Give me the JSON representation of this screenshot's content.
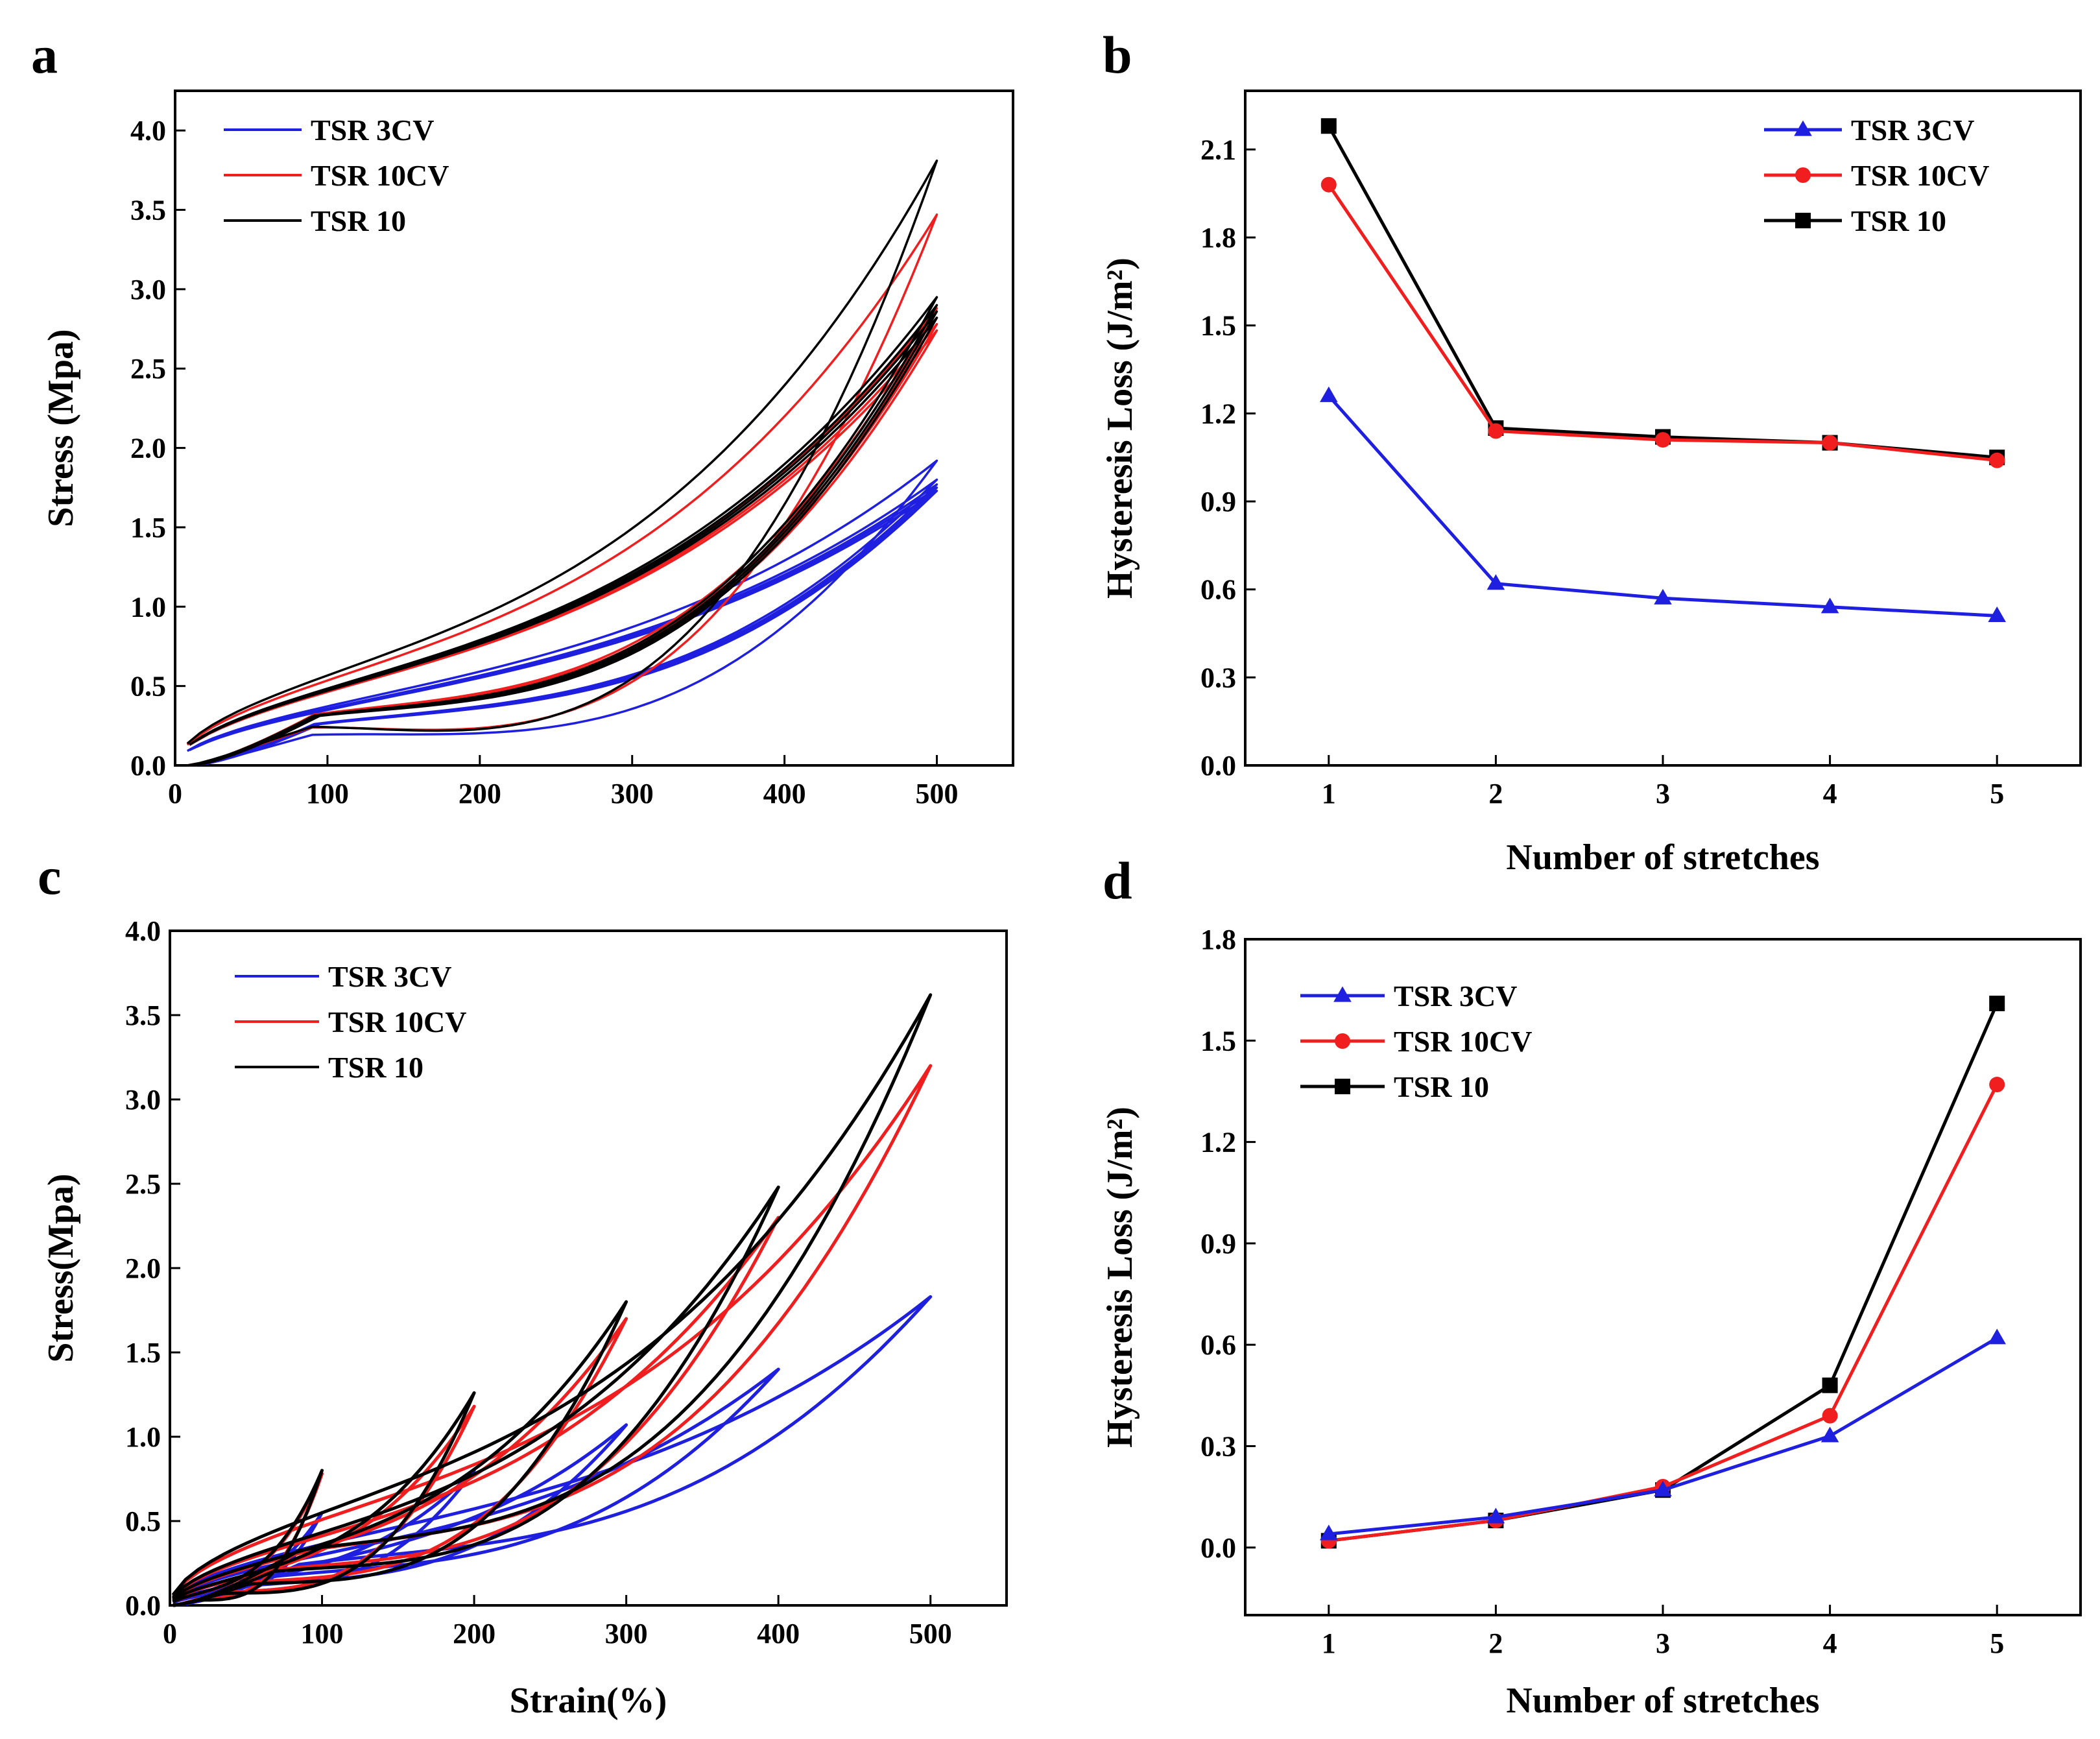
{
  "chart_data": [
    {
      "panel": "a",
      "type": "line",
      "title": "",
      "xlabel": "",
      "ylabel": "Stress (Mpa)",
      "xlim": [
        0,
        550
      ],
      "ylim": [
        0,
        4.25
      ],
      "xticks": [
        0,
        100,
        200,
        300,
        400,
        500
      ],
      "xtick_labels": [
        "0",
        "100",
        "200",
        "300",
        "400",
        "500"
      ],
      "yticks": [
        0,
        0.5,
        1.0,
        1.5,
        2.0,
        2.5,
        3.0,
        3.5,
        4.0
      ],
      "ytick_labels": [
        "0.0",
        "0.5",
        "1.0",
        "1.5",
        "2.0",
        "2.5",
        "3.0",
        "3.5",
        "4.0"
      ],
      "legend_position": "top-left",
      "legend_marker": "line",
      "loop_mode": "fixed",
      "series": [
        {
          "name": "TSR 3CV",
          "color": "#1f1fe0",
          "peaks": [
            1.92,
            1.8,
            1.77,
            1.75,
            1.73
          ],
          "unload_drop": 0.18
        },
        {
          "name": "TSR 10CV",
          "color": "#f01e1e",
          "peaks": [
            3.47,
            2.88,
            2.82,
            2.78,
            2.74
          ],
          "unload_drop": 0.3
        },
        {
          "name": "TSR 10",
          "color": "#000000",
          "peaks": [
            3.81,
            2.95,
            2.9,
            2.86,
            2.82
          ],
          "unload_drop": 0.33
        }
      ]
    },
    {
      "panel": "b",
      "type": "line",
      "title": "",
      "xlabel": "Number of stretches",
      "ylabel": "Hysteresis Loss (J/m²)",
      "xlim": [
        0.5,
        5.5
      ],
      "ylim": [
        0,
        2.3
      ],
      "xticks": [
        1,
        2,
        3,
        4,
        5
      ],
      "xtick_labels": [
        "1",
        "2",
        "3",
        "4",
        "5"
      ],
      "yticks": [
        0,
        0.3,
        0.6,
        0.9,
        1.2,
        1.5,
        1.8,
        2.1
      ],
      "ytick_labels": [
        "0.0",
        "0.3",
        "0.6",
        "0.9",
        "1.2",
        "1.5",
        "1.8",
        "2.1"
      ],
      "legend_position": "top-right",
      "legend_marker": "marker",
      "x": [
        1,
        2,
        3,
        4,
        5
      ],
      "series": [
        {
          "name": "TSR 3CV",
          "color": "#1f1fe0",
          "marker": "triangle",
          "values": [
            1.26,
            0.62,
            0.57,
            0.54,
            0.51
          ]
        },
        {
          "name": "TSR 10CV",
          "color": "#f01e1e",
          "marker": "circle",
          "values": [
            1.98,
            1.14,
            1.11,
            1.1,
            1.04
          ]
        },
        {
          "name": "TSR 10",
          "color": "#000000",
          "marker": "square",
          "values": [
            2.18,
            1.15,
            1.12,
            1.1,
            1.05
          ]
        }
      ]
    },
    {
      "panel": "c",
      "type": "line",
      "title": "",
      "xlabel": "Strain(%)",
      "ylabel": "Stress(Mpa)",
      "xlim": [
        0,
        550
      ],
      "ylim": [
        0,
        4.0
      ],
      "xticks": [
        0,
        100,
        200,
        300,
        400,
        500
      ],
      "xtick_labels": [
        "0",
        "100",
        "200",
        "300",
        "400",
        "500"
      ],
      "yticks": [
        0,
        0.5,
        1.0,
        1.5,
        2.0,
        2.5,
        3.0,
        3.5,
        4.0
      ],
      "ytick_labels": [
        "0.0",
        "0.5",
        "1.0",
        "1.5",
        "2.0",
        "2.5",
        "3.0",
        "3.5",
        "4.0"
      ],
      "legend_position": "top-left",
      "legend_marker": "line",
      "loop_mode": "increasing",
      "loop_strains": [
        100,
        200,
        300,
        400,
        500
      ],
      "series": [
        {
          "name": "TSR 3CV",
          "color": "#1f1fe0",
          "peaks": [
            0.55,
            0.8,
            1.07,
            1.4,
            1.83
          ],
          "unload_drop": 0.12
        },
        {
          "name": "TSR 10CV",
          "color": "#f01e1e",
          "peaks": [
            0.78,
            1.18,
            1.7,
            2.3,
            3.2
          ],
          "unload_drop": 0.2
        },
        {
          "name": "TSR 10",
          "color": "#000000",
          "peaks": [
            0.8,
            1.26,
            1.8,
            2.48,
            3.62
          ],
          "unload_drop": 0.24
        }
      ]
    },
    {
      "panel": "d",
      "type": "line",
      "title": "",
      "xlabel": "Number of stretches",
      "ylabel": "Hysteresis Loss (J/m²)",
      "xlim": [
        0.5,
        5.5
      ],
      "ylim": [
        -0.2,
        1.8
      ],
      "xticks": [
        1,
        2,
        3,
        4,
        5
      ],
      "xtick_labels": [
        "1",
        "2",
        "3",
        "4",
        "5"
      ],
      "yticks": [
        0,
        0.3,
        0.6,
        0.9,
        1.2,
        1.5,
        1.8
      ],
      "ytick_labels": [
        "0.0",
        "0.3",
        "0.6",
        "0.9",
        "1.2",
        "1.5",
        "1.8"
      ],
      "legend_position": "top-left",
      "legend_marker": "marker",
      "x": [
        1,
        2,
        3,
        4,
        5
      ],
      "series": [
        {
          "name": "TSR 3CV",
          "color": "#1f1fe0",
          "marker": "triangle",
          "values": [
            0.04,
            0.09,
            0.17,
            0.33,
            0.62
          ]
        },
        {
          "name": "TSR 10CV",
          "color": "#f01e1e",
          "marker": "circle",
          "values": [
            0.02,
            0.08,
            0.18,
            0.39,
            1.37
          ]
        },
        {
          "name": "TSR 10",
          "color": "#000000",
          "marker": "square",
          "values": [
            0.02,
            0.08,
            0.17,
            0.48,
            1.61
          ]
        }
      ]
    }
  ]
}
